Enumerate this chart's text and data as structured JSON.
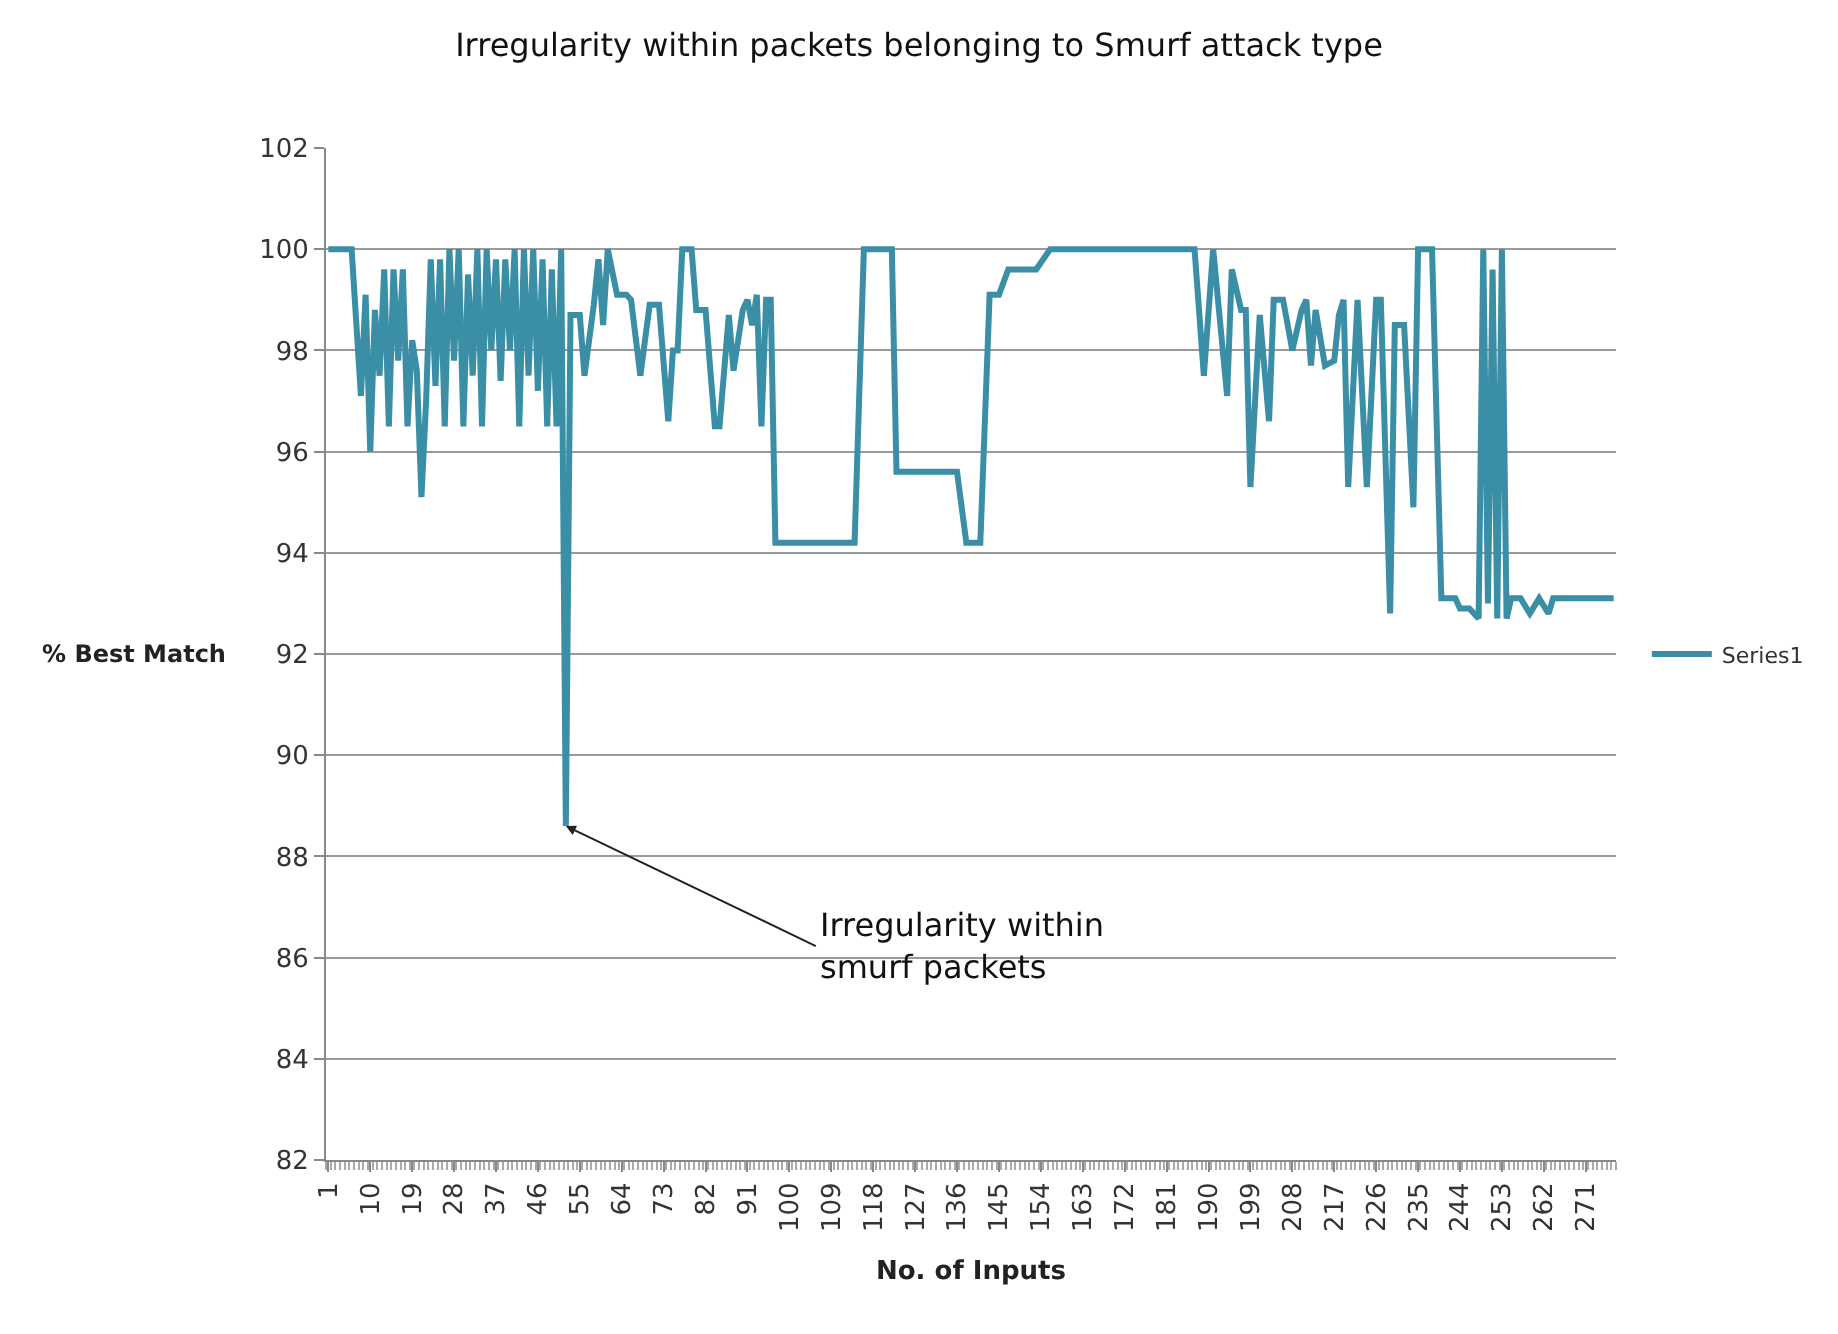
{
  "chart_data": {
    "type": "line",
    "title": "Irregularity within packets belonging to Smurf attack type",
    "xlabel": "No. of Inputs",
    "ylabel": "% Best Match",
    "x": [
      1,
      6,
      8,
      9,
      10,
      11,
      12,
      13,
      14,
      15,
      16,
      17,
      18,
      19,
      20,
      21,
      22,
      23,
      24,
      25,
      26,
      27,
      28,
      29,
      30,
      31,
      32,
      33,
      34,
      35,
      36,
      37,
      38,
      39,
      40,
      41,
      42,
      43,
      44,
      45,
      46,
      47,
      48,
      49,
      50,
      51,
      52,
      53,
      55,
      56,
      58,
      59,
      60,
      61,
      63,
      65,
      66,
      68,
      70,
      72,
      74,
      75,
      76,
      77,
      79,
      80,
      82,
      84,
      85,
      87,
      88,
      90,
      91,
      92,
      93,
      94,
      95,
      96,
      97,
      114,
      116,
      122,
      123,
      136,
      138,
      141,
      143,
      145,
      147,
      153,
      156,
      187,
      189,
      191,
      194,
      195,
      197,
      198,
      199,
      201,
      203,
      204,
      206,
      208,
      210,
      211,
      212,
      213,
      215,
      217,
      218,
      219,
      220,
      222,
      224,
      226,
      227,
      229,
      230,
      232,
      234,
      235,
      238,
      240,
      243,
      244,
      246,
      248,
      249,
      250,
      251,
      252,
      253,
      254,
      255,
      257,
      259,
      261,
      263,
      264,
      277
    ],
    "series": [
      {
        "name": "Series1",
        "color": "#3a8ea5",
        "values": [
          100,
          100,
          97.1,
          99.1,
          96.0,
          98.8,
          97.5,
          99.6,
          96.5,
          99.6,
          97.8,
          99.6,
          96.5,
          98.2,
          97.6,
          95.1,
          97.0,
          99.8,
          97.3,
          99.8,
          96.5,
          100,
          97.8,
          100,
          96.5,
          99.5,
          97.5,
          100,
          96.5,
          100,
          98,
          99.8,
          97.4,
          99.8,
          98,
          100,
          96.5,
          100,
          97.5,
          100,
          97.2,
          99.8,
          96.5,
          99.6,
          96.5,
          100,
          88.6,
          98.7,
          98.7,
          97.5,
          98.9,
          99.8,
          98.5,
          100,
          99.1,
          99.1,
          99,
          97.5,
          98.9,
          98.9,
          96.6,
          98,
          98,
          100,
          100,
          98.8,
          98.8,
          96.5,
          96.5,
          98.7,
          97.6,
          98.8,
          99,
          98.5,
          99.1,
          96.5,
          99,
          99,
          94.2,
          94.2,
          100,
          100,
          95.6,
          95.6,
          94.2,
          94.2,
          99.1,
          99.1,
          99.6,
          99.6,
          100,
          100,
          97.5,
          100,
          97.1,
          99.6,
          98.8,
          98.8,
          95.3,
          98.7,
          96.6,
          99,
          99,
          98,
          98.8,
          99,
          97.7,
          98.8,
          97.7,
          97.8,
          98.7,
          99,
          95.3,
          99,
          95.3,
          99,
          99,
          92.8,
          98.5,
          98.5,
          94.9,
          100,
          100,
          93.1,
          93.1,
          92.9,
          92.9,
          92.7,
          100,
          93,
          99.6,
          92.7,
          100,
          92.7,
          93.1,
          93.1,
          92.8,
          93.1,
          92.8,
          93.1,
          93.1
        ]
      }
    ],
    "xlim": [
      0.5,
      277.5
    ],
    "xticks": [
      1,
      10,
      19,
      28,
      37,
      46,
      55,
      64,
      73,
      82,
      91,
      100,
      109,
      118,
      127,
      136,
      145,
      154,
      163,
      172,
      181,
      190,
      199,
      208,
      217,
      226,
      235,
      244,
      253,
      262,
      271
    ],
    "ylim": [
      82,
      102
    ],
    "yticks": [
      82,
      84,
      86,
      88,
      90,
      92,
      94,
      96,
      98,
      100,
      102
    ],
    "grid": "y",
    "legend": "right",
    "marker": "none",
    "line_style": "solid",
    "annotations": [
      {
        "text": "Irregularity within\nsmurf packets",
        "x": 52,
        "y": 88.6
      }
    ]
  }
}
